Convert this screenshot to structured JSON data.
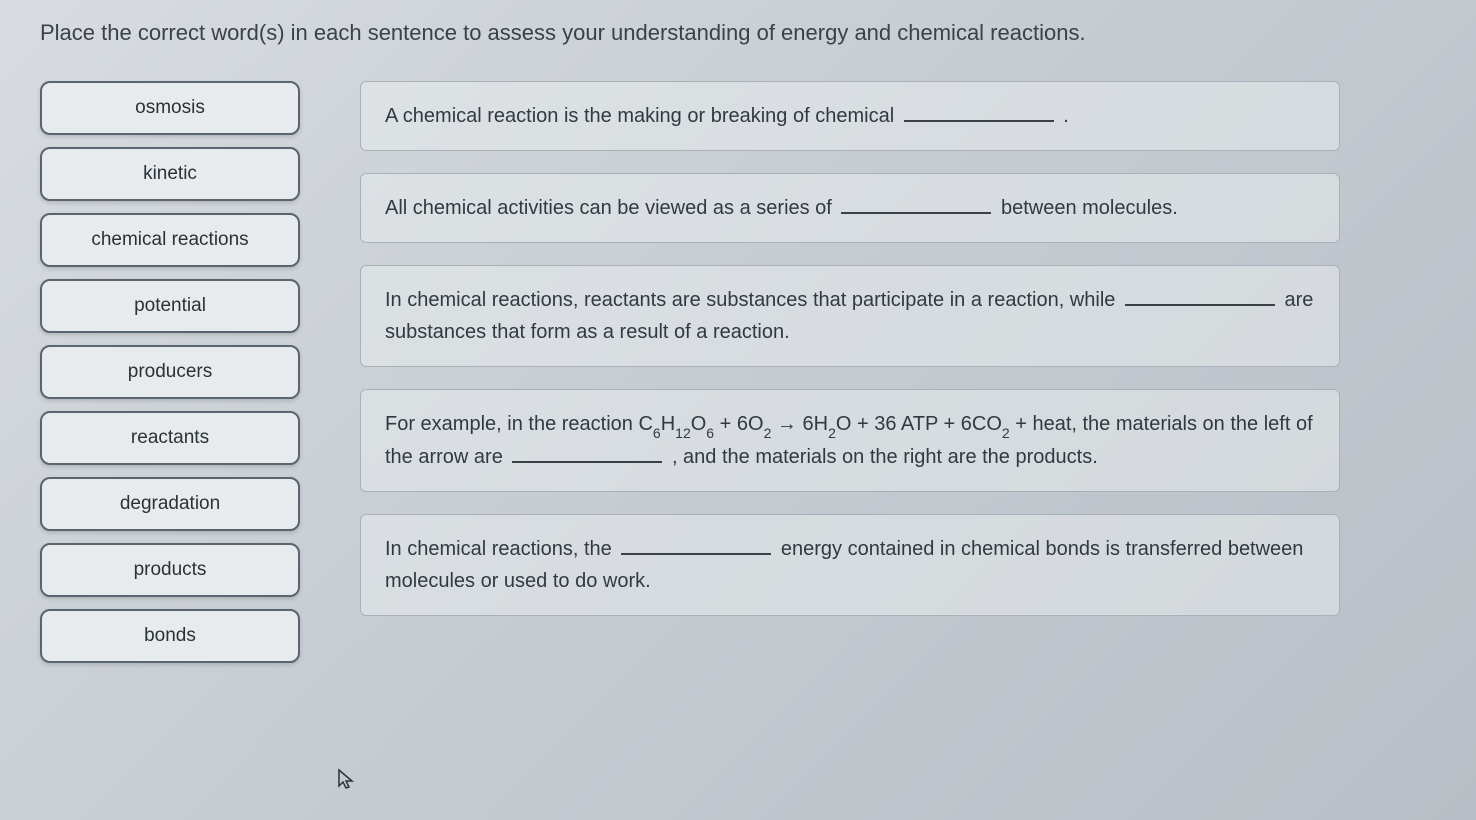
{
  "instruction": "Place the correct word(s) in each sentence to assess your understanding of energy and chemical reactions.",
  "wordBank": [
    "osmosis",
    "kinetic",
    "chemical reactions",
    "potential",
    "producers",
    "reactants",
    "degradation",
    "products",
    "bonds"
  ],
  "sentences": [
    {
      "parts": [
        {
          "t": "text",
          "v": "A chemical reaction is the making or breaking of chemical "
        },
        {
          "t": "blank"
        },
        {
          "t": "text",
          "v": " ."
        }
      ]
    },
    {
      "parts": [
        {
          "t": "text",
          "v": "All chemical activities can be viewed as a series of "
        },
        {
          "t": "blank"
        },
        {
          "t": "text",
          "v": " between molecules."
        }
      ]
    },
    {
      "parts": [
        {
          "t": "text",
          "v": "In chemical reactions, reactants are substances that participate in a reaction, while "
        },
        {
          "t": "blank"
        },
        {
          "t": "text",
          "v": " are substances that form as a result of a reaction."
        }
      ]
    },
    {
      "parts": [
        {
          "t": "text",
          "v": "For example, in the reaction C"
        },
        {
          "t": "sub",
          "v": "6"
        },
        {
          "t": "text",
          "v": "H"
        },
        {
          "t": "sub",
          "v": "12"
        },
        {
          "t": "text",
          "v": "O"
        },
        {
          "t": "sub",
          "v": "6"
        },
        {
          "t": "text",
          "v": " + 6O"
        },
        {
          "t": "sub",
          "v": "2"
        },
        {
          "t": "text",
          "v": " → 6H"
        },
        {
          "t": "sub",
          "v": "2"
        },
        {
          "t": "text",
          "v": "O + 36 ATP + 6CO"
        },
        {
          "t": "sub",
          "v": "2"
        },
        {
          "t": "text",
          "v": " + heat, the materials on the left of the arrow are "
        },
        {
          "t": "blank"
        },
        {
          "t": "text",
          "v": " , and the materials on the right are the products."
        }
      ]
    },
    {
      "parts": [
        {
          "t": "text",
          "v": "In chemical reactions, the "
        },
        {
          "t": "blank"
        },
        {
          "t": "text",
          "v": " energy contained in chemical bonds is transferred between molecules or used to do work."
        }
      ]
    }
  ],
  "colors": {
    "chipBg": "#e8ebed",
    "chipBorder": "#5a6570",
    "cardBg": "rgba(232,235,237,0.55)",
    "cardBorder": "#a8b2ba",
    "text": "#2f3a42"
  }
}
